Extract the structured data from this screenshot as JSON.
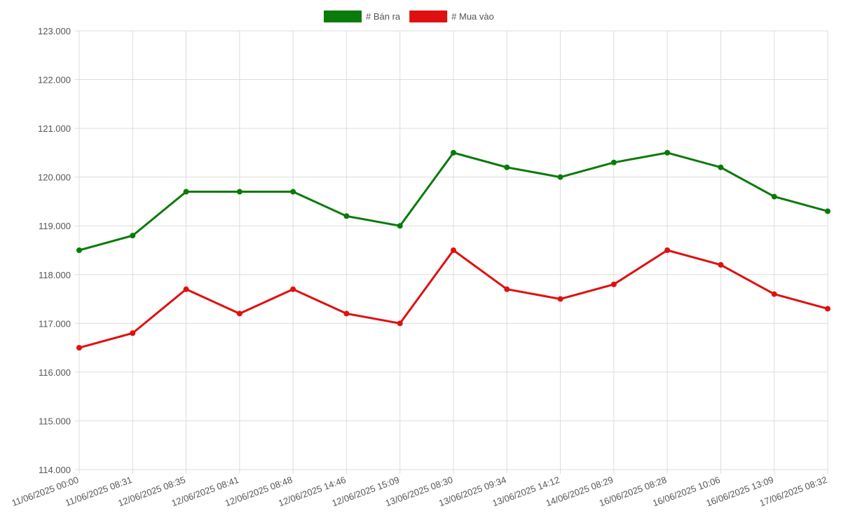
{
  "chart_data": {
    "type": "line",
    "categories": [
      "11/06/2025 00:00",
      "11/06/2025 08:31",
      "12/06/2025 08:35",
      "12/06/2025 08:41",
      "12/06/2025 08:48",
      "12/06/2025 14:46",
      "12/06/2025 15:09",
      "13/06/2025 08:30",
      "13/06/2025 09:34",
      "13/06/2025 14:12",
      "14/06/2025 08:29",
      "16/06/2025 08:28",
      "16/06/2025 10:06",
      "16/06/2025 13:09",
      "17/06/2025 08:32"
    ],
    "series": [
      {
        "name": "# Bán ra",
        "color": "#0a7a0a",
        "values": [
          118500,
          118800,
          119700,
          119700,
          119700,
          119200,
          119000,
          120500,
          120200,
          120000,
          120300,
          120500,
          120200,
          119600,
          119300
        ]
      },
      {
        "name": "# Mua vào",
        "color": "#e01010",
        "values": [
          116500,
          116800,
          117700,
          117200,
          117700,
          117200,
          117000,
          118500,
          117700,
          117500,
          117800,
          118500,
          118200,
          117600,
          117300
        ]
      }
    ],
    "ylim": [
      114000,
      123000
    ],
    "yticks": [
      {
        "value": 114000,
        "label": "114.000"
      },
      {
        "value": 115000,
        "label": "115.000"
      },
      {
        "value": 116000,
        "label": "116.000"
      },
      {
        "value": 117000,
        "label": "117.000"
      },
      {
        "value": 118000,
        "label": "118.000"
      },
      {
        "value": 119000,
        "label": "119.000"
      },
      {
        "value": 120000,
        "label": "120.000"
      },
      {
        "value": 121000,
        "label": "121.000"
      },
      {
        "value": 122000,
        "label": "122.000"
      },
      {
        "value": 123000,
        "label": "123.000"
      }
    ],
    "grid": true,
    "legend": "top"
  }
}
